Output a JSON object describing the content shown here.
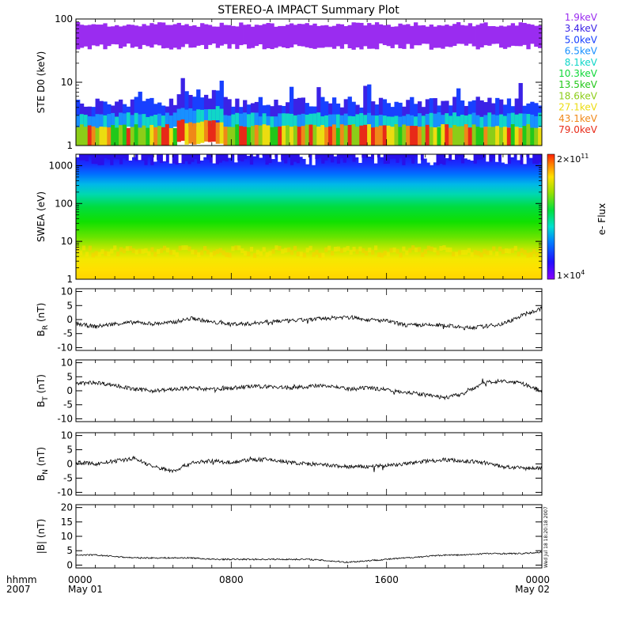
{
  "title": "STEREO-A IMPACT Summary Plot",
  "footer": {
    "axis_label_1": "hhmm",
    "axis_label_2": "2007",
    "ticks": [
      {
        "time": "0000",
        "date": "May 01",
        "hour": 0
      },
      {
        "time": "0800",
        "date": "",
        "hour": 8
      },
      {
        "time": "1600",
        "date": "",
        "hour": 16
      },
      {
        "time": "0000",
        "date": "May 02",
        "hour": 24
      }
    ]
  },
  "timestamp": "Wed Jul 18 18:20:18 2007",
  "colorbar": {
    "label": "e- Flux",
    "max_label": "2×10",
    "max_exp": "11",
    "min_label": "1×10",
    "min_exp": "4"
  },
  "chart_data": [
    {
      "type": "heatmap",
      "name": "STE D0",
      "ylabel": "STE D0 (keV)",
      "yscale": "log",
      "ylim": [
        1,
        100
      ],
      "yticks": [
        "1",
        "10",
        "100"
      ],
      "x_range_hours": [
        0,
        24
      ],
      "legend": {
        "placement": "right",
        "entries": [
          {
            "label": "1.9keV",
            "color": "#9a2cf0"
          },
          {
            "label": "3.4keV",
            "color": "#3b22e6"
          },
          {
            "label": "5.0keV",
            "color": "#1840ff"
          },
          {
            "label": "6.5keV",
            "color": "#1890ff"
          },
          {
            "label": "8.1keV",
            "color": "#10d6c8"
          },
          {
            "label": "10.3keV",
            "color": "#0ed838"
          },
          {
            "label": "13.5keV",
            "color": "#22c81a"
          },
          {
            "label": "18.6keV",
            "color": "#8ccd18"
          },
          {
            "label": "27.1keV",
            "color": "#ecdc10"
          },
          {
            "label": "43.1keV",
            "color": "#f08818"
          },
          {
            "label": "79.0keV",
            "color": "#e82a18"
          }
        ]
      }
    },
    {
      "type": "heatmap",
      "name": "SWEA",
      "ylabel": "SWEA (eV)",
      "yscale": "log",
      "ylim": [
        1,
        2000
      ],
      "yticks": [
        "1",
        "10",
        "100",
        "1000"
      ],
      "x_range_hours": [
        0,
        24
      ],
      "colorbar_range": [
        10000,
        200000000000
      ]
    },
    {
      "type": "line",
      "name": "BR",
      "ylabel_main": "B",
      "ylabel_sub": "R",
      "ylabel_unit": "(nT)",
      "ylim": [
        -11,
        11
      ],
      "yticks": [
        "-10",
        "-5",
        "0",
        "5",
        "10"
      ],
      "x_hours": [
        0,
        1,
        2,
        3,
        4,
        5,
        6,
        7,
        8,
        9,
        10,
        11,
        12,
        13,
        14,
        15,
        16,
        17,
        18,
        19,
        20,
        21,
        22,
        23,
        24
      ],
      "values": [
        -1.5,
        -2.5,
        -1.5,
        -1.0,
        -1.5,
        -1.0,
        0.5,
        -1.0,
        -1.5,
        -1.5,
        -0.5,
        -0.5,
        0.0,
        0.5,
        1.0,
        0.0,
        -0.5,
        -2.0,
        -2.0,
        -2.0,
        -3.0,
        -2.5,
        -1.5,
        1.5,
        4.0
      ]
    },
    {
      "type": "line",
      "name": "BT",
      "ylabel_main": "B",
      "ylabel_sub": "T",
      "ylabel_unit": "(nT)",
      "ylim": [
        -11,
        11
      ],
      "yticks": [
        "-10",
        "-5",
        "0",
        "5",
        "10"
      ],
      "x_hours": [
        0,
        1,
        2,
        3,
        4,
        5,
        6,
        7,
        8,
        9,
        10,
        11,
        12,
        13,
        14,
        15,
        16,
        17,
        18,
        19,
        20,
        21,
        22,
        23,
        24
      ],
      "values": [
        2.5,
        3.0,
        2.0,
        0.5,
        0.0,
        0.5,
        1.0,
        0.5,
        1.0,
        1.5,
        1.5,
        1.0,
        1.5,
        2.0,
        0.5,
        1.0,
        0.5,
        -0.5,
        -1.5,
        -2.5,
        -1.0,
        3.0,
        3.5,
        2.5,
        0.0
      ]
    },
    {
      "type": "line",
      "name": "BN",
      "ylabel_main": "B",
      "ylabel_sub": "N",
      "ylabel_unit": "(nT)",
      "ylim": [
        -11,
        11
      ],
      "yticks": [
        "-10",
        "-5",
        "0",
        "5",
        "10"
      ],
      "x_hours": [
        0,
        1,
        2,
        3,
        4,
        5,
        6,
        7,
        8,
        9,
        10,
        11,
        12,
        13,
        14,
        15,
        16,
        17,
        18,
        19,
        20,
        21,
        22,
        23,
        24
      ],
      "values": [
        0.5,
        0.0,
        1.0,
        2.0,
        -1.0,
        -2.5,
        0.5,
        1.0,
        0.5,
        1.5,
        1.5,
        0.5,
        0.0,
        -0.5,
        -1.0,
        -1.0,
        -0.5,
        0.0,
        1.0,
        1.5,
        1.0,
        0.5,
        -1.0,
        -1.5,
        -1.5
      ]
    },
    {
      "type": "line",
      "name": "|B|",
      "ylabel": "|B| (nT)",
      "ylim": [
        -1,
        21
      ],
      "yticks": [
        "0",
        "5",
        "10",
        "15",
        "20"
      ],
      "x_hours": [
        0,
        1,
        2,
        3,
        4,
        5,
        6,
        7,
        8,
        9,
        10,
        11,
        12,
        13,
        14,
        15,
        16,
        17,
        18,
        19,
        20,
        21,
        22,
        23,
        24
      ],
      "values": [
        3.5,
        3.5,
        3.0,
        2.5,
        2.5,
        2.5,
        2.5,
        2.0,
        2.0,
        2.0,
        2.0,
        2.0,
        2.0,
        1.5,
        1.0,
        1.5,
        2.0,
        2.5,
        3.0,
        3.5,
        3.5,
        4.0,
        4.0,
        4.0,
        4.5
      ]
    }
  ]
}
